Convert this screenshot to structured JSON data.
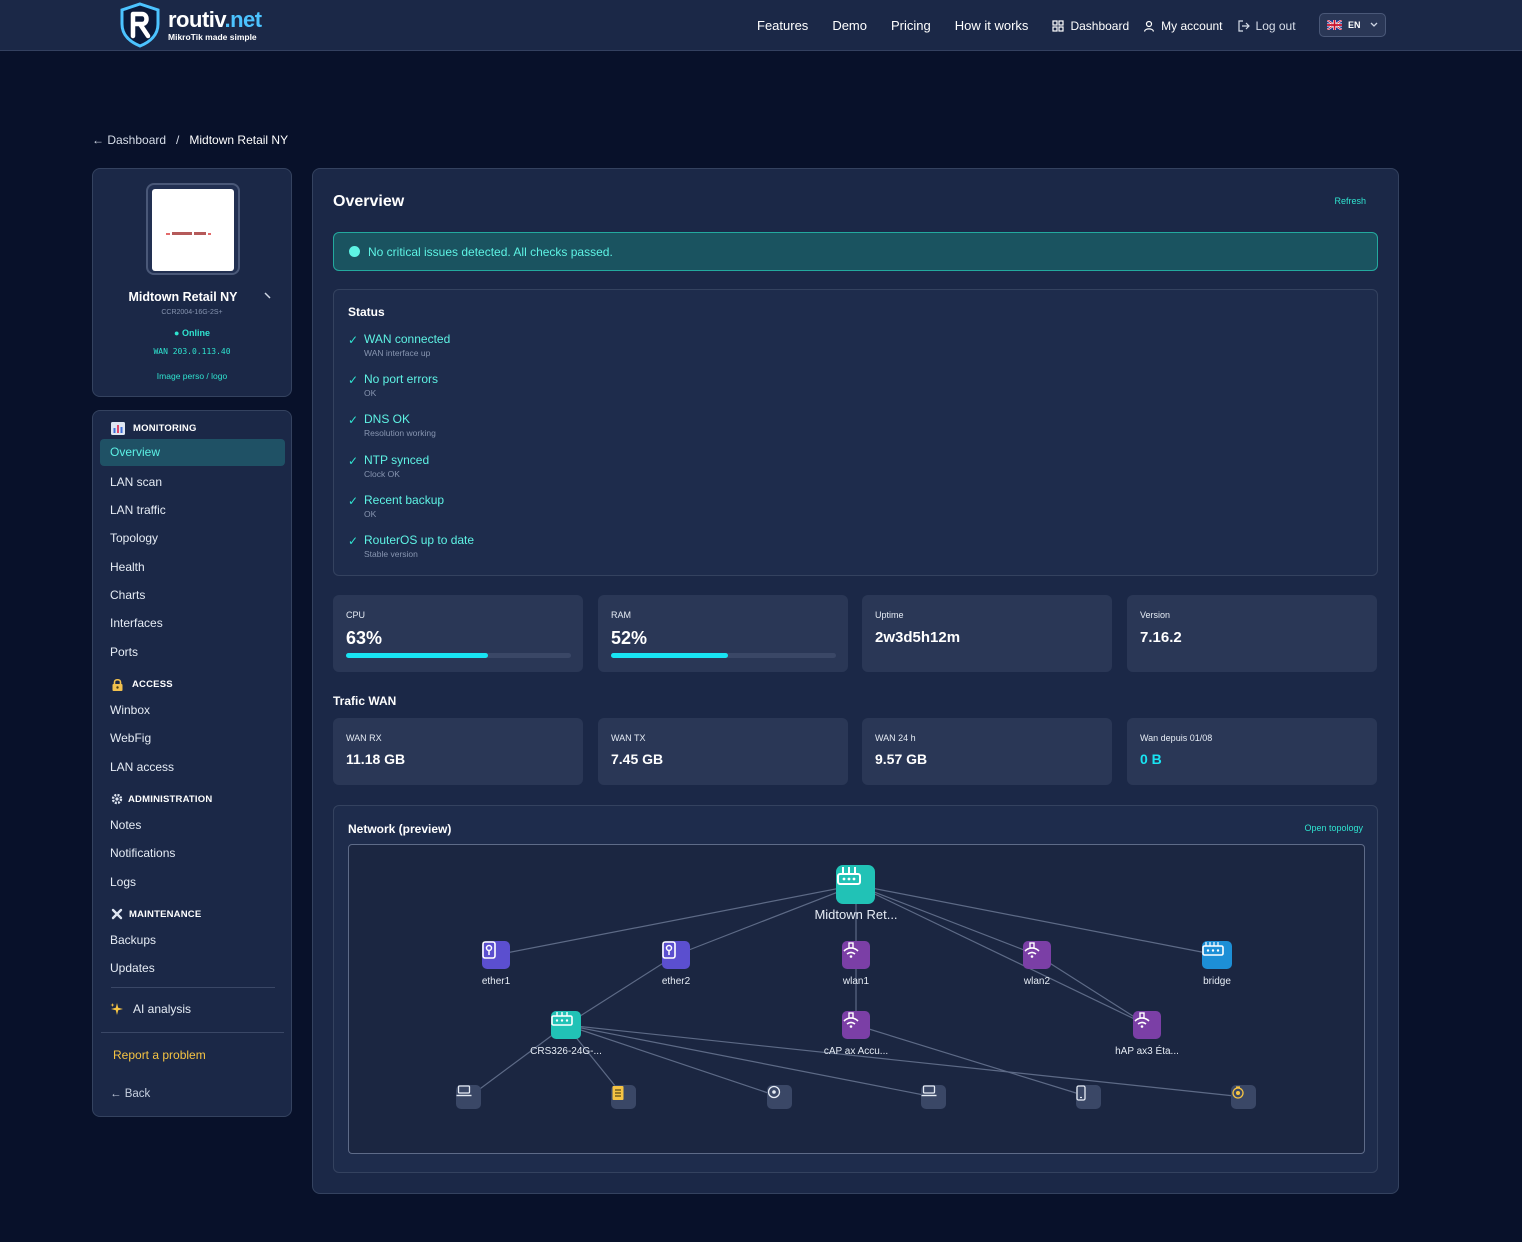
{
  "brand": {
    "name": "routiv",
    "tld": ".net",
    "tagline": "MikroTik made simple"
  },
  "nav": {
    "features": "Features",
    "demo": "Demo",
    "pricing": "Pricing",
    "how_it_works": "How it works",
    "dashboard": "Dashboard",
    "my_account": "My account",
    "logout": "Log out",
    "language": "EN"
  },
  "breadcrumb": {
    "back": "← Dashboard",
    "separator": "/",
    "current": "Midtown Retail NY"
  },
  "device": {
    "name": "Midtown Retail NY",
    "model": "CCR2004-16G-2S+",
    "status": "● Online",
    "wan": "WAN 203.0.113.40",
    "custom_image_link": "Image perso / logo"
  },
  "menu": {
    "monitoring": {
      "title": "MONITORING",
      "items": [
        "Overview",
        "LAN scan",
        "LAN traffic",
        "Topology",
        "Health",
        "Charts",
        "Interfaces",
        "Ports"
      ]
    },
    "access": {
      "title": "ACCESS",
      "items": [
        "Winbox",
        "WebFig",
        "LAN access"
      ]
    },
    "administration": {
      "title": "ADMINISTRATION",
      "items": [
        "Notes",
        "Notifications",
        "Logs"
      ]
    },
    "maintenance": {
      "title": "MAINTENANCE",
      "items": [
        "Backups",
        "Updates"
      ]
    },
    "ai_analysis": "AI analysis",
    "report_problem": "Report a problem",
    "back": "← Back"
  },
  "overview": {
    "title": "Overview",
    "refresh": "Refresh",
    "alert": "No critical issues detected. All checks passed.",
    "status_title": "Status",
    "checks": [
      {
        "label": "WAN connected",
        "sub": "WAN interface up"
      },
      {
        "label": "No port errors",
        "sub": "OK"
      },
      {
        "label": "DNS OK",
        "sub": "Resolution working"
      },
      {
        "label": "NTP synced",
        "sub": "Clock OK"
      },
      {
        "label": "Recent backup",
        "sub": "OK"
      },
      {
        "label": "RouterOS up to date",
        "sub": "Stable version"
      }
    ],
    "stats": {
      "cpu": {
        "label": "CPU",
        "value": "63%",
        "percent": 63
      },
      "ram": {
        "label": "RAM",
        "value": "52%",
        "percent": 52
      },
      "uptime": {
        "label": "Uptime",
        "value": "2w3d5h12m"
      },
      "version": {
        "label": "Version",
        "value": "7.16.2"
      }
    },
    "wan_title": "Trafic WAN",
    "wan": {
      "rx": {
        "label": "WAN RX",
        "value": "11.18 GB"
      },
      "tx": {
        "label": "WAN TX",
        "value": "7.45 GB"
      },
      "day": {
        "label": "WAN 24 h",
        "value": "9.57 GB"
      },
      "since": {
        "label": "Wan depuis 01/08",
        "value": "0 B"
      }
    },
    "network": {
      "title": "Network (preview)",
      "open_topology": "Open topology",
      "nodes": {
        "router": "Midtown Ret...",
        "ether1": "ether1",
        "ether2": "ether2",
        "wlan1": "wlan1",
        "wlan2": "wlan2",
        "bridge": "bridge",
        "switch": "CRS326-24G-...",
        "cap": "cAP ax Accu...",
        "hap": "hAP ax3 Éta..."
      }
    }
  },
  "colors": {
    "accent": "#18e4f3",
    "success": "#2fe3cf",
    "warning": "#f6c443",
    "port_node": "#5b4fcf",
    "wireless_node": "#7b3fa6",
    "router_node": "#21c2b6",
    "bridge_node": "#1d8fd6"
  }
}
